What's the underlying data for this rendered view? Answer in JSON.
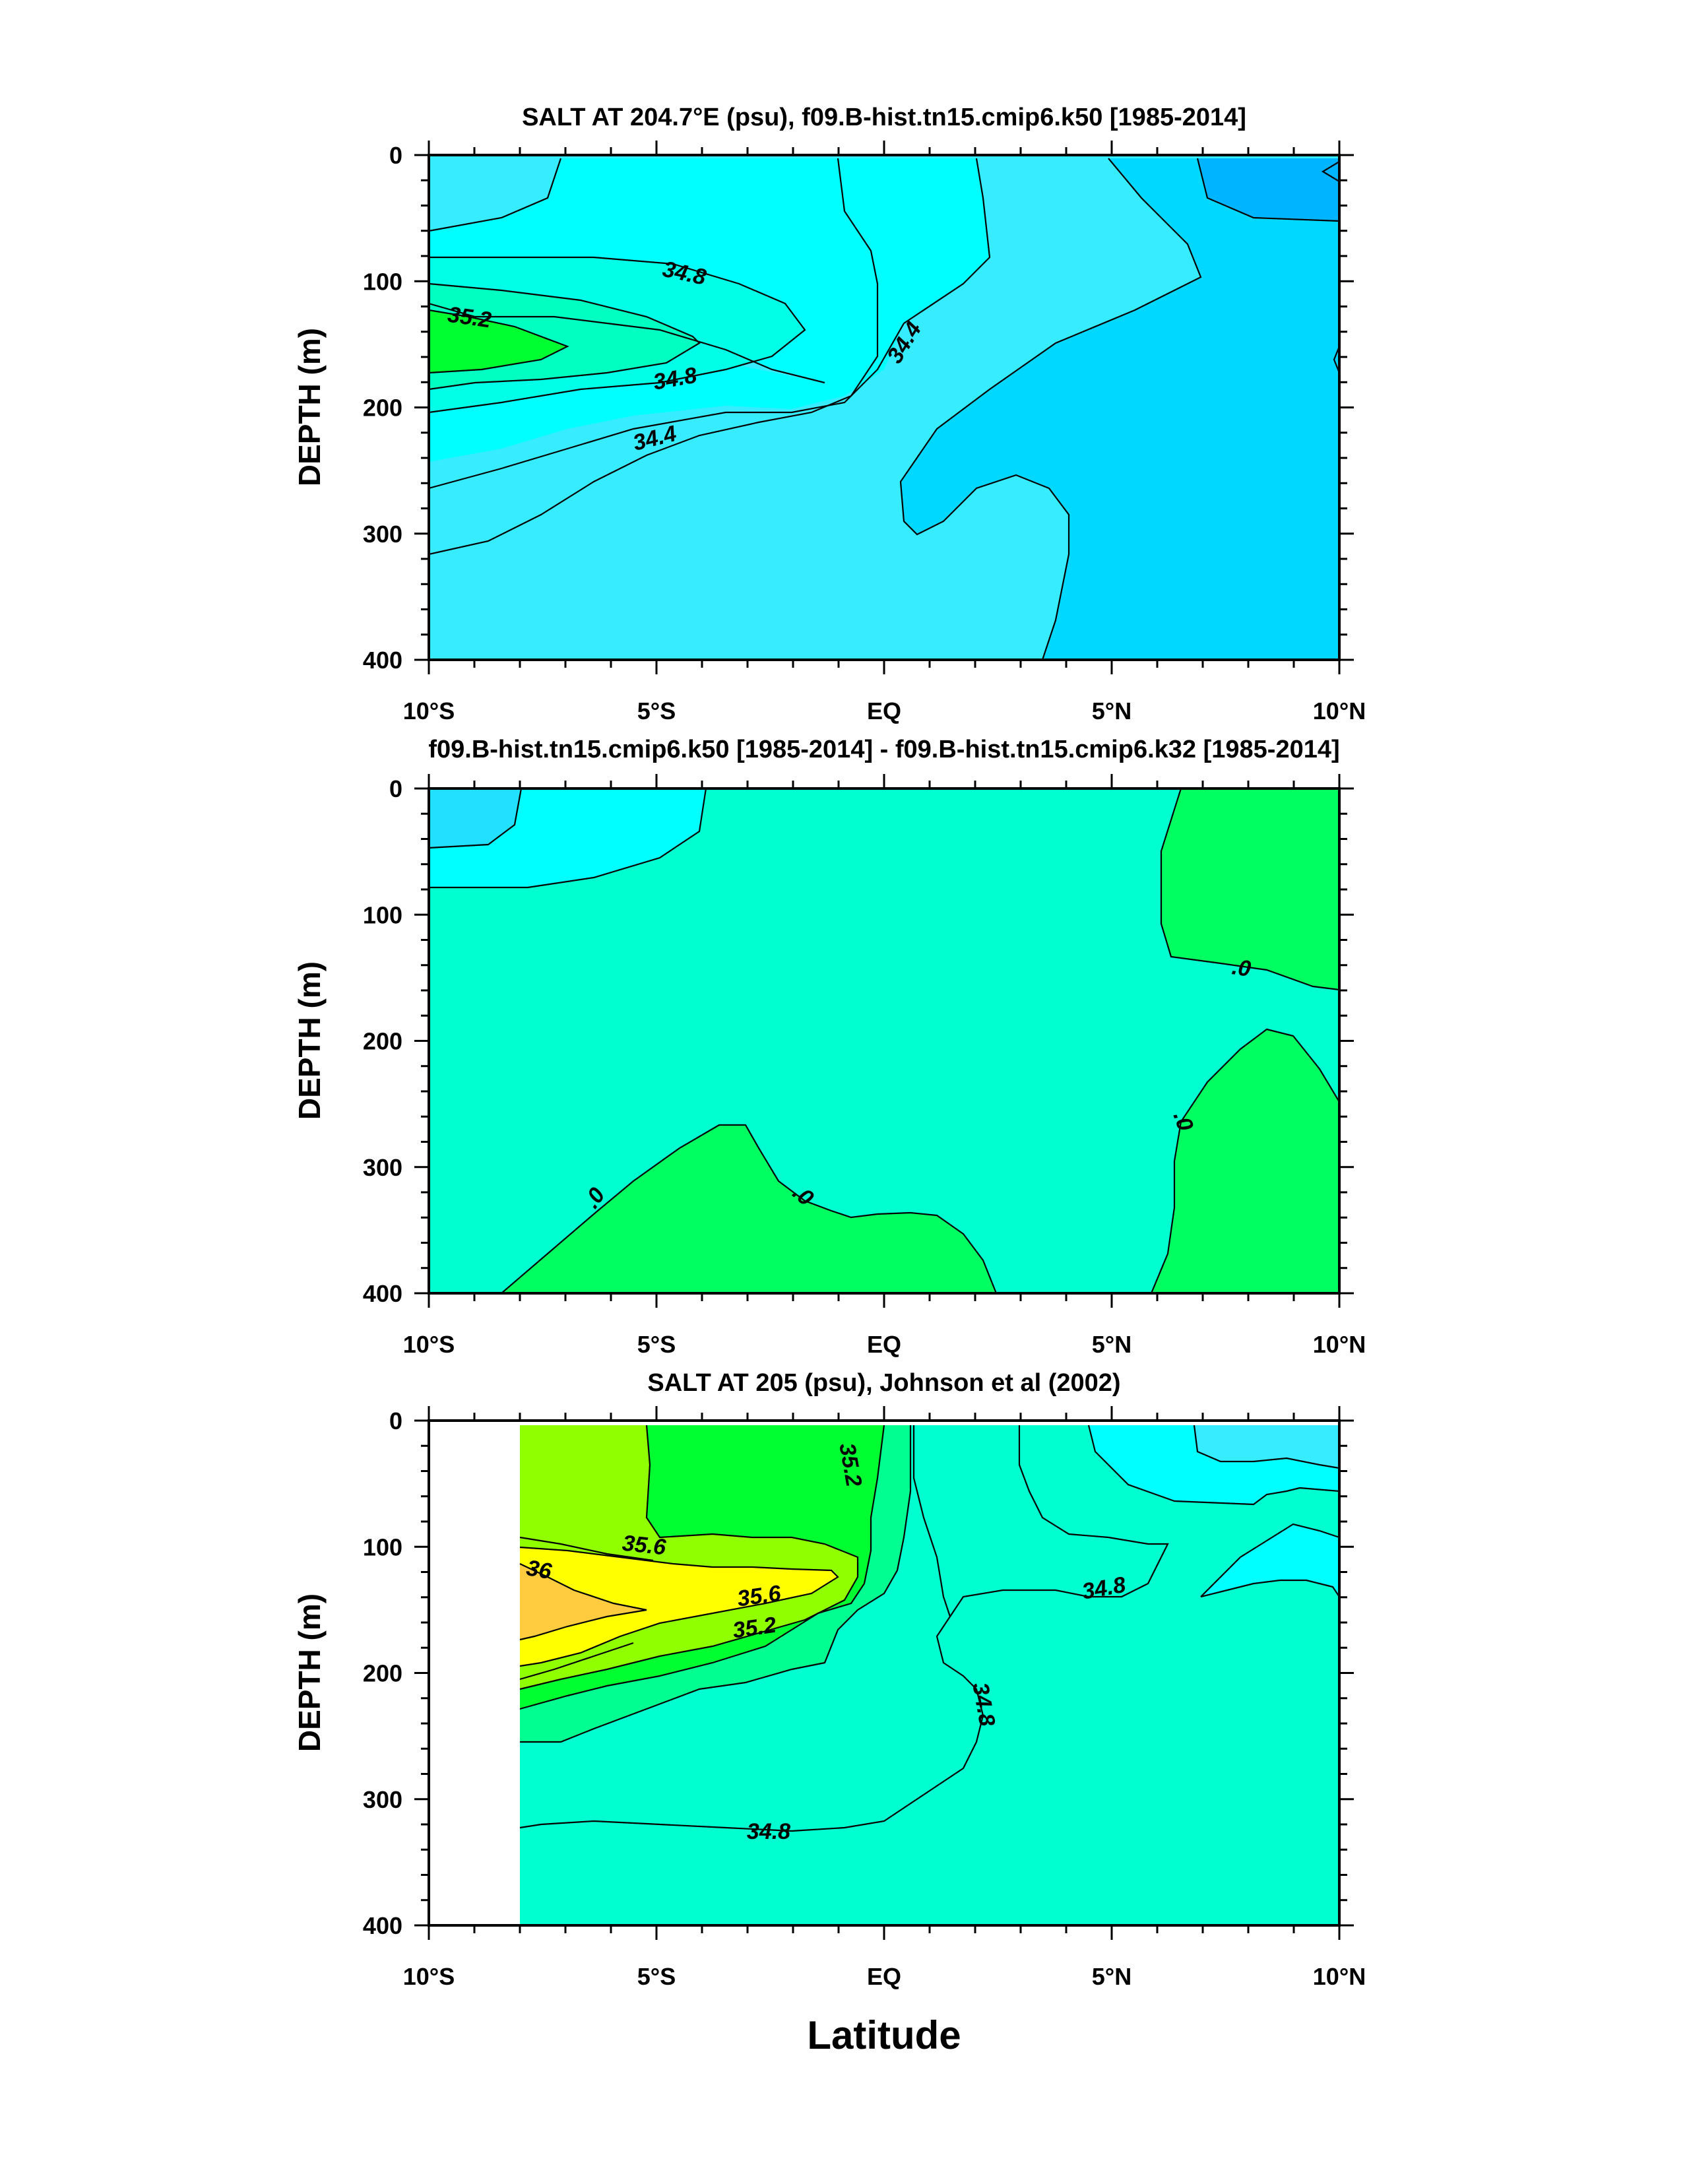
{
  "xlabel": "Latitude",
  "x_ticks": [
    "10°S",
    "5°S",
    "EQ",
    "5°N",
    "10°N"
  ],
  "colors": {
    "s_33_8": "#00b4ff",
    "s_34_0": "#00d8ff",
    "s_34_2": "#38ecff",
    "s_34_4": "#00ffff",
    "s_34_6": "#00ffe6",
    "s_34_8": "#00ffc0",
    "s_35_0": "#00ff90",
    "s_35_2": "#00ff30",
    "s_35_4": "#90ff00",
    "s_35_6": "#ffff00",
    "s_36_0": "#ffcc40",
    "diff_neg2": "#22e0ff",
    "diff_neg1": "#00ffff",
    "diff_0": "#00ffd0",
    "diff_pos1": "#00ff60"
  },
  "chart_data": [
    {
      "type": "contour",
      "title": "SALT AT 204.7°E (psu), f09.B-hist.tn15.cmip6.k50 [1985-2014]",
      "ylabel": "DEPTH (m)",
      "xlim": [
        -10,
        10
      ],
      "ylim": [
        400,
        0
      ],
      "y_ticks": [
        "0",
        "100",
        "200",
        "300",
        "400"
      ],
      "contour_labels": [
        "34.8",
        "35.2",
        "34.8",
        "34.4",
        "34.4"
      ]
    },
    {
      "type": "contour",
      "title": "f09.B-hist.tn15.cmip6.k50 [1985-2014] - f09.B-hist.tn15.cmip6.k32 [1985-2014]",
      "ylabel": "DEPTH (m)",
      "xlim": [
        -10,
        10
      ],
      "ylim": [
        400,
        0
      ],
      "y_ticks": [
        "0",
        "100",
        "200",
        "300",
        "400"
      ],
      "contour_labels": [
        ".0",
        ".0",
        ".0",
        ".0"
      ]
    },
    {
      "type": "contour",
      "title": "SALT AT 205 (psu), Johnson et al (2002)",
      "ylabel": "DEPTH (m)",
      "xlim": [
        -10,
        10
      ],
      "ylim": [
        400,
        0
      ],
      "data_xlim": [
        -8,
        10
      ],
      "y_ticks": [
        "0",
        "100",
        "200",
        "300",
        "400"
      ],
      "contour_labels": [
        "35.2",
        "35.6",
        "36",
        "35.6",
        "35.2",
        "34.8",
        "34.8",
        "34.8"
      ]
    }
  ]
}
